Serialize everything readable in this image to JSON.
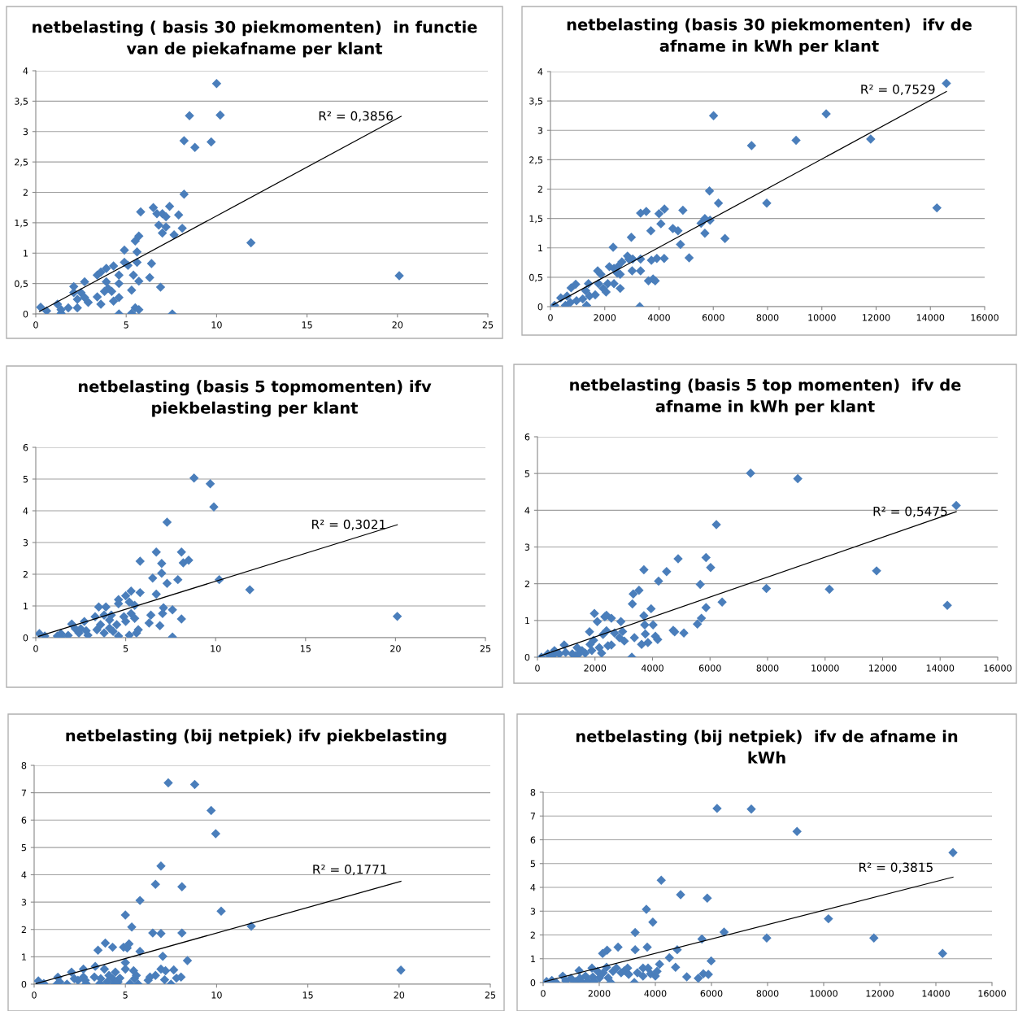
{
  "chart_data": [
    {
      "type": "scatter",
      "title": "netbelasting ( basis 30 piekmomenten)  in functie\nvan de piekafname per klant",
      "xlim": [
        0,
        25
      ],
      "xticks": [
        0,
        5,
        10,
        15,
        20,
        25
      ],
      "ylim": [
        0,
        4
      ],
      "yticks": [
        0,
        {
          "value": 0.5,
          "label": "0,5"
        },
        1,
        {
          "value": 1.5,
          "label": "1,5"
        },
        2,
        {
          "value": 2.5,
          "label": "2,5"
        },
        3,
        {
          "value": 3.5,
          "label": "3,5"
        },
        4
      ],
      "grid": "y",
      "marker": "diamond",
      "series": [
        {
          "color": "#4a7ebb",
          "x": [
            0.27,
            0.6,
            1.2,
            1.4,
            1.4,
            1.8,
            2.1,
            2.1,
            2.3,
            2.7,
            2.5,
            2.7,
            2.9,
            2.3,
            3.4,
            3.4,
            3.6,
            3.6,
            3.9,
            3.9,
            3.8,
            4.0,
            4.3,
            4.2,
            4.3,
            4.6,
            4.6,
            4.6,
            4.6,
            4.9,
            4.9,
            5.1,
            5.3,
            5.3,
            5.4,
            5.5,
            5.6,
            5.6,
            5.7,
            5.5,
            5.7,
            5.7,
            5.8,
            6.4,
            6.3,
            6.5,
            6.7,
            6.8,
            6.9,
            7.0,
            7.0,
            7.2,
            7.2,
            7.4,
            7.55,
            7.65,
            7.9,
            8.1,
            8.2,
            8.2,
            8.5,
            8.8,
            9.7,
            10.0,
            10.2,
            11.9,
            20.1
          ],
          "values": [
            0.11,
            0.05,
            0.16,
            0.07,
            0.01,
            0.1,
            0.45,
            0.35,
            0.1,
            0.53,
            0.35,
            0.27,
            0.19,
            0.24,
            0.28,
            0.64,
            0.69,
            0.16,
            0.75,
            0.53,
            0.37,
            0.42,
            0.79,
            0.37,
            0.21,
            0.64,
            0.5,
            0.27,
            0.0,
            1.05,
            0.85,
            0.8,
            0.39,
            0.01,
            0.64,
            1.2,
            0.85,
            1.02,
            1.28,
            0.1,
            0.07,
            0.54,
            1.68,
            0.83,
            0.6,
            1.75,
            1.65,
            1.46,
            0.44,
            1.65,
            1.33,
            1.43,
            1.6,
            1.77,
            0.0,
            1.3,
            1.63,
            1.41,
            1.97,
            2.85,
            3.26,
            2.74,
            2.83,
            3.79,
            3.27,
            1.17,
            0.63
          ]
        },
        {
          "type": "line",
          "marker": "none",
          "color": "#000000",
          "x": [
            0.2,
            20.2
          ],
          "values": [
            0.04,
            3.25
          ]
        }
      ],
      "annotations": [
        "R² = 0,3856"
      ]
    },
    {
      "type": "scatter",
      "title": "netbelasting (basis 30 piekmomenten)  ifv de\nafname in kWh per klant",
      "xlim": [
        0,
        16000
      ],
      "xticks": [
        0,
        2000,
        4000,
        6000,
        8000,
        10000,
        12000,
        14000,
        16000
      ],
      "ylim": [
        0,
        4
      ],
      "yticks": [
        0,
        {
          "value": 0.5,
          "label": "0,5"
        },
        1,
        {
          "value": 1.5,
          "label": "1,5"
        },
        2,
        {
          "value": 2.5,
          "label": "2,5"
        },
        3,
        {
          "value": 3.5,
          "label": "3,5"
        },
        4
      ],
      "grid": "y",
      "marker": "diamond",
      "series": [
        {
          "color": "#4a7ebb",
          "x": [
            150,
            380,
            550,
            610,
            730,
            760,
            930,
            960,
            1190,
            1330,
            1300,
            1400,
            1440,
            1650,
            1740,
            1860,
            1770,
            1940,
            2050,
            2110,
            2170,
            2310,
            2340,
            2340,
            2460,
            2480,
            2570,
            2630,
            2570,
            2840,
            2890,
            2980,
            3010,
            3030,
            3290,
            3320,
            3320,
            3320,
            3530,
            3610,
            3700,
            3720,
            3780,
            3860,
            3920,
            4000,
            4070,
            4190,
            4200,
            4510,
            4700,
            4790,
            4880,
            5110,
            5550,
            5690,
            5690,
            5860,
            5880,
            6010,
            6190,
            6430,
            7410,
            7970,
            9050,
            10160,
            11800,
            14240,
            14590
          ],
          "values": [
            0.02,
            0.15,
            0.02,
            0.18,
            0.07,
            0.32,
            0.38,
            0.1,
            0.13,
            0.02,
            0.27,
            0.39,
            0.18,
            0.2,
            0.61,
            0.55,
            0.39,
            0.31,
            0.25,
            0.39,
            0.68,
            1.01,
            0.65,
            0.39,
            0.57,
            0.68,
            0.31,
            0.76,
            0.55,
            0.86,
            0.81,
            1.18,
            0.61,
            0.81,
            0.0,
            0.61,
            0.81,
            1.59,
            1.62,
            0.44,
            1.29,
            0.79,
            0.47,
            0.44,
            0.82,
            1.58,
            1.41,
            0.82,
            1.66,
            1.33,
            1.29,
            1.06,
            1.64,
            0.83,
            1.42,
            1.5,
            1.25,
            1.97,
            1.47,
            3.25,
            1.76,
            1.16,
            2.74,
            1.76,
            2.83,
            3.28,
            2.85,
            1.68,
            3.8
          ]
        },
        {
          "type": "line",
          "marker": "none",
          "color": "#000000",
          "x": [
            90,
            14590
          ],
          "values": [
            0.03,
            3.66
          ]
        }
      ],
      "annotations": [
        "R² = 0,7529"
      ]
    },
    {
      "type": "scatter",
      "title": "netbelasting (basis 5 topmomenten) ifv\npiekbelasting per klant",
      "xlim": [
        0,
        25
      ],
      "xticks": [
        0,
        5,
        10,
        15,
        20,
        25
      ],
      "ylim": [
        0,
        6
      ],
      "yticks": [
        0,
        1,
        2,
        3,
        4,
        5,
        6
      ],
      "grid": "y",
      "marker": "diamond",
      "series": [
        {
          "color": "#4a7ebb",
          "x": [
            0.2,
            0.5,
            1.2,
            1.4,
            1.4,
            1.8,
            2.0,
            2.2,
            2.4,
            2.7,
            2.8,
            2.9,
            2.5,
            3.3,
            3.5,
            3.4,
            3.6,
            3.8,
            3.9,
            3.8,
            4.1,
            4.1,
            4.2,
            4.3,
            4.5,
            4.6,
            4.6,
            4.6,
            4.9,
            5.0,
            5.0,
            5.2,
            5.2,
            5.3,
            5.3,
            5.5,
            5.5,
            5.6,
            5.7,
            5.8,
            5.8,
            6.3,
            6.4,
            6.5,
            6.7,
            6.7,
            6.9,
            7.0,
            7.0,
            7.05,
            7.1,
            7.3,
            7.3,
            7.6,
            7.6,
            7.9,
            8.1,
            8.1,
            8.2,
            8.5,
            8.8,
            9.7,
            9.9,
            10.2,
            11.9,
            20.1
          ],
          "values": [
            0.13,
            0.05,
            0.05,
            0.13,
            0.02,
            0.07,
            0.43,
            0.28,
            0.15,
            0.51,
            0.22,
            0.08,
            0.28,
            0.66,
            0.97,
            0.25,
            0.41,
            0.71,
            0.97,
            0.15,
            0.56,
            0.3,
            0.71,
            0.2,
            0.41,
            1.07,
            1.2,
            0.05,
            0.66,
            0.51,
            1.32,
            1.12,
            0.08,
            1.47,
            0.76,
            0.61,
            1.02,
            0.15,
            0.25,
            1.42,
            2.41,
            0.46,
            0.71,
            1.88,
            1.37,
            2.7,
            0.38,
            2.03,
            2.34,
            0.76,
            0.94,
            1.71,
            3.64,
            0.02,
            0.88,
            1.83,
            0.59,
            2.7,
            2.36,
            2.44,
            5.03,
            4.85,
            4.12,
            1.83,
            1.51,
            0.67
          ]
        },
        {
          "type": "line",
          "marker": "none",
          "color": "#000000",
          "x": [
            0.15,
            20.1
          ],
          "values": [
            0.04,
            3.56
          ]
        }
      ],
      "annotations": [
        "R² = 0,3021"
      ]
    },
    {
      "type": "scatter",
      "title": "netbelasting (basis 5 top momenten)  ifv de\nafname in kWh per klant",
      "xlim": [
        0,
        16000
      ],
      "xticks": [
        0,
        2000,
        4000,
        6000,
        8000,
        10000,
        12000,
        14000,
        16000
      ],
      "ylim": [
        0,
        6
      ],
      "yticks": [
        0,
        1,
        2,
        3,
        4,
        5,
        6
      ],
      "grid": "y",
      "marker": "diamond",
      "series": [
        {
          "color": "#4a7ebb",
          "x": [
            140,
            360,
            530,
            590,
            760,
            930,
            980,
            1210,
            1320,
            1380,
            1440,
            1550,
            1660,
            1810,
            1830,
            1890,
            1950,
            1980,
            2080,
            2150,
            2230,
            2280,
            2340,
            2400,
            2400,
            2450,
            2570,
            2570,
            2680,
            2850,
            2900,
            2960,
            3020,
            3280,
            3300,
            3330,
            3370,
            3530,
            3620,
            3700,
            3700,
            3730,
            3750,
            3840,
            3950,
            4020,
            4100,
            4180,
            4210,
            4490,
            4720,
            4770,
            4890,
            5090,
            5560,
            5660,
            5700,
            5860,
            5860,
            6020,
            6220,
            6420,
            7410,
            7960,
            9050,
            10150,
            11790,
            14250,
            14560
          ],
          "values": [
            0.0,
            0.09,
            0.04,
            0.18,
            0.09,
            0.33,
            0.13,
            0.09,
            0.04,
            0.26,
            0.09,
            0.18,
            0.11,
            0.69,
            0.35,
            0.18,
            0.46,
            1.19,
            0.97,
            0.26,
            0.11,
            0.62,
            1.1,
            1.14,
            0.72,
            0.31,
            1.06,
            0.33,
            0.66,
            0.53,
            0.97,
            0.7,
            0.44,
            0.0,
            1.45,
            1.72,
            0.53,
            1.82,
            0.35,
            2.38,
            1.13,
            0.88,
            0.63,
            0.4,
            1.32,
            0.88,
            0.57,
            0.48,
            2.07,
            2.33,
            0.73,
            0.69,
            2.68,
            0.66,
            0.9,
            1.98,
            1.06,
            1.35,
            2.71,
            2.44,
            3.61,
            1.5,
            5.01,
            1.87,
            4.86,
            1.85,
            2.35,
            1.41,
            4.13
          ]
        },
        {
          "type": "line",
          "marker": "none",
          "color": "#000000",
          "x": [
            80,
            14560
          ],
          "values": [
            0.03,
            3.96
          ]
        }
      ],
      "annotations": [
        "R² = 0,5475"
      ]
    },
    {
      "type": "scatter",
      "title": "netbelasting (bij netpiek) ifv piekbelasting",
      "xlim": [
        0,
        25
      ],
      "xticks": [
        0,
        5,
        10,
        15,
        20,
        25
      ],
      "ylim": [
        0,
        8
      ],
      "yticks": [
        0,
        1,
        2,
        3,
        4,
        5,
        6,
        7,
        8
      ],
      "grid": "y",
      "marker": "diamond",
      "series": [
        {
          "color": "#4a7ebb",
          "x": [
            0.23,
            0.53,
            1.25,
            1.3,
            1.4,
            1.8,
            2.05,
            2.2,
            2.4,
            2.7,
            2.7,
            2.85,
            2.8,
            3.35,
            3.3,
            3.5,
            3.65,
            3.6,
            3.9,
            3.85,
            4.0,
            4.1,
            4.3,
            4.3,
            4.4,
            4.45,
            4.6,
            4.7,
            4.9,
            5.0,
            5.0,
            5.0,
            5.1,
            5.2,
            5.25,
            5.35,
            5.45,
            5.5,
            5.6,
            5.7,
            5.8,
            5.8,
            6.25,
            6.35,
            6.5,
            6.65,
            6.65,
            6.95,
            6.95,
            6.95,
            7.05,
            7.15,
            7.2,
            7.35,
            7.5,
            7.65,
            7.8,
            8.05,
            8.1,
            8.1,
            8.4,
            8.8,
            9.7,
            9.95,
            10.25,
            11.9,
            20.1
          ],
          "values": [
            0.12,
            0.02,
            0.0,
            0.25,
            0.08,
            0.0,
            0.44,
            0.2,
            0.14,
            0.55,
            0.26,
            0.02,
            0.14,
            0.65,
            0.26,
            1.24,
            0.2,
            0.02,
            1.5,
            0.55,
            0.08,
            0.32,
            1.35,
            0.2,
            0.02,
            0.44,
            0.08,
            0.22,
            1.35,
            2.53,
            0.79,
            0.55,
            1.32,
            1.47,
            0.02,
            2.09,
            0.49,
            0.2,
            0.32,
            0.0,
            1.2,
            3.06,
            0.14,
            0.26,
            1.87,
            3.65,
            0.32,
            4.32,
            1.85,
            0.55,
            1.02,
            0.16,
            0.49,
            7.36,
            0.0,
            0.52,
            0.22,
            0.26,
            1.87,
            3.56,
            0.86,
            7.3,
            6.35,
            5.5,
            2.67,
            2.12,
            0.51
          ]
        },
        {
          "type": "line",
          "marker": "none",
          "color": "#000000",
          "x": [
            0.1,
            20.1
          ],
          "values": [
            0.02,
            3.76
          ]
        }
      ],
      "annotations": [
        "R² = 0,1771"
      ]
    },
    {
      "type": "scatter",
      "title": "netbelasting (bij netpiek)  ifv de afname in\nkWh",
      "xlim": [
        0,
        16000
      ],
      "xticks": [
        0,
        2000,
        4000,
        6000,
        8000,
        10000,
        12000,
        14000,
        16000
      ],
      "ylim": [
        0,
        8
      ],
      "yticks": [
        0,
        1,
        2,
        3,
        4,
        5,
        6,
        7,
        8
      ],
      "grid": "y",
      "marker": "diamond",
      "series": [
        {
          "color": "#4a7ebb",
          "x": [
            120,
            310,
            460,
            700,
            810,
            990,
            1160,
            1280,
            1310,
            1390,
            1510,
            1590,
            1740,
            1770,
            1820,
            1940,
            2010,
            2120,
            2140,
            2280,
            2260,
            2320,
            2410,
            2490,
            2610,
            2670,
            2780,
            2900,
            3010,
            3050,
            3250,
            3280,
            3280,
            3360,
            3560,
            3560,
            3680,
            3710,
            3740,
            3830,
            3910,
            4000,
            4060,
            4150,
            4210,
            4500,
            4720,
            4780,
            4900,
            5120,
            5530,
            5660,
            5710,
            5850,
            5890,
            5990,
            6200,
            6450,
            7420,
            7970,
            9050,
            10170,
            11790,
            14240,
            14610
          ],
          "values": [
            0.04,
            0.09,
            0.0,
            0.27,
            0.07,
            0.18,
            0.04,
            0.5,
            0.18,
            0.0,
            0.27,
            0.07,
            0.61,
            0.23,
            0.04,
            0.47,
            0.2,
            1.22,
            0.41,
            1.36,
            0.64,
            0.2,
            0.0,
            0.47,
            0.61,
            1.49,
            0.41,
            0.5,
            0.61,
            0.34,
            0.0,
            2.1,
            1.38,
            0.41,
            0.61,
            0.27,
            3.08,
            1.49,
            0.61,
            0.37,
            2.54,
            0.27,
            0.47,
            0.77,
            4.3,
            1.04,
            0.64,
            1.38,
            3.69,
            0.24,
            0.18,
            1.83,
            0.37,
            3.55,
            0.34,
            0.91,
            7.32,
            2.12,
            7.29,
            1.87,
            6.35,
            2.68,
            1.87,
            1.22,
            5.46
          ]
        },
        {
          "type": "line",
          "marker": "none",
          "color": "#000000",
          "x": [
            60,
            14610
          ],
          "values": [
            0.04,
            4.43
          ]
        }
      ],
      "annotations": [
        "R² = 0,3815"
      ]
    }
  ]
}
